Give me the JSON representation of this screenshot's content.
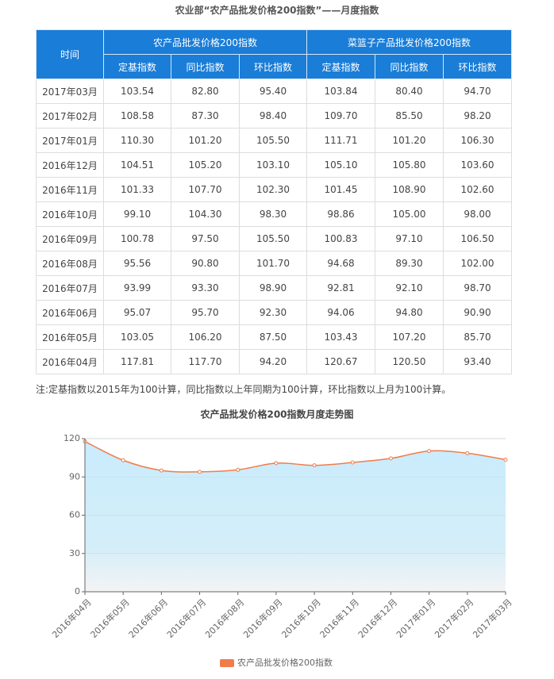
{
  "header": {
    "title": "农业部“农产品批发价格200指数”——月度指数"
  },
  "table": {
    "time_header": "时间",
    "groups": [
      {
        "label": "农产品批发价格200指数",
        "columns": [
          "定基指数",
          "同比指数",
          "环比指数"
        ]
      },
      {
        "label": "菜篮子产品批发价格200指数",
        "columns": [
          "定基指数",
          "同比指数",
          "环比指数"
        ]
      }
    ],
    "rows": [
      [
        "2017年03月",
        "103.54",
        "82.80",
        "95.40",
        "103.84",
        "80.40",
        "94.70"
      ],
      [
        "2017年02月",
        "108.58",
        "87.30",
        "98.40",
        "109.70",
        "85.50",
        "98.20"
      ],
      [
        "2017年01月",
        "110.30",
        "101.20",
        "105.50",
        "111.71",
        "101.20",
        "106.30"
      ],
      [
        "2016年12月",
        "104.51",
        "105.20",
        "103.10",
        "105.10",
        "105.80",
        "103.60"
      ],
      [
        "2016年11月",
        "101.33",
        "107.70",
        "102.30",
        "101.45",
        "108.90",
        "102.60"
      ],
      [
        "2016年10月",
        "99.10",
        "104.30",
        "98.30",
        "98.86",
        "105.00",
        "98.00"
      ],
      [
        "2016年09月",
        "100.78",
        "97.50",
        "105.50",
        "100.83",
        "97.10",
        "106.50"
      ],
      [
        "2016年08月",
        "95.56",
        "90.80",
        "101.70",
        "94.68",
        "89.30",
        "102.00"
      ],
      [
        "2016年07月",
        "93.99",
        "93.30",
        "98.90",
        "92.81",
        "92.10",
        "98.70"
      ],
      [
        "2016年06月",
        "95.07",
        "95.70",
        "92.30",
        "94.06",
        "94.80",
        "90.90"
      ],
      [
        "2016年05月",
        "103.05",
        "106.20",
        "87.50",
        "103.43",
        "107.20",
        "85.70"
      ],
      [
        "2016年04月",
        "117.81",
        "117.70",
        "94.20",
        "120.67",
        "120.50",
        "93.40"
      ]
    ]
  },
  "note": "注:定基指数以2015年为100计算，同比指数以上年同期为100计算，环比指数以上月为100计算。",
  "chart_data": {
    "type": "line",
    "title": "农产品批发价格200指数月度走势图",
    "categories": [
      "2016年04月",
      "2016年05月",
      "2016年06月",
      "2016年07月",
      "2016年08月",
      "2016年09月",
      "2016年10月",
      "2016年11月",
      "2016年12月",
      "2017年01月",
      "2017年02月",
      "2017年03月"
    ],
    "series": [
      {
        "name": "农产品批发价格200指数",
        "color": "#f07c4a",
        "values": [
          117.81,
          103.05,
          95.07,
          93.99,
          95.56,
          100.78,
          99.1,
          101.33,
          104.51,
          110.3,
          108.58,
          103.54
        ]
      }
    ],
    "ylim": [
      0,
      120
    ],
    "yticks": [
      0,
      30,
      60,
      90,
      120
    ],
    "grid": true
  }
}
